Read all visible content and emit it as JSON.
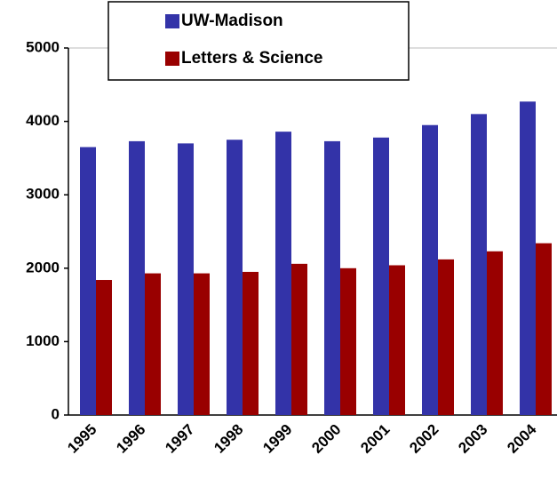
{
  "chart_data": {
    "type": "bar",
    "categories": [
      "1995",
      "1996",
      "1997",
      "1998",
      "1999",
      "2000",
      "2001",
      "2002",
      "2003",
      "2004"
    ],
    "series": [
      {
        "name": "UW-Madison",
        "color": "#3333a8",
        "values": [
          3650,
          3730,
          3700,
          3750,
          3860,
          3730,
          3780,
          3950,
          4100,
          4270
        ]
      },
      {
        "name": "Letters & Science",
        "color": "#990000",
        "values": [
          1840,
          1930,
          1930,
          1950,
          2060,
          2000,
          2040,
          2120,
          2230,
          2340
        ]
      }
    ],
    "ylim": [
      0,
      5000
    ],
    "yticks": [
      0,
      1000,
      2000,
      3000,
      4000,
      5000
    ],
    "grid": false,
    "legend": "top"
  }
}
